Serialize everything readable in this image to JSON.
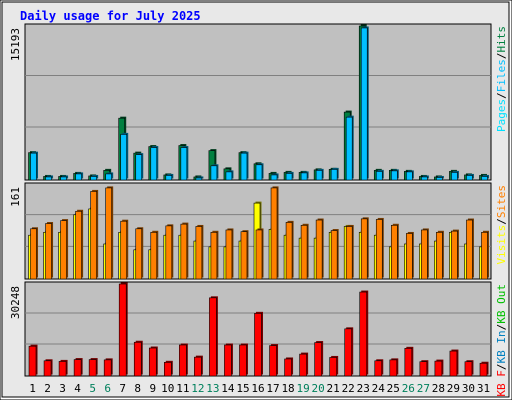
{
  "chart_data": {
    "type": "bar",
    "title": "Daily usage for July 2025",
    "categories": [
      "1",
      "2",
      "3",
      "4",
      "5",
      "6",
      "7",
      "8",
      "9",
      "10",
      "11",
      "12",
      "13",
      "14",
      "15",
      "16",
      "17",
      "18",
      "19",
      "20",
      "21",
      "22",
      "23",
      "24",
      "25",
      "26",
      "27",
      "28",
      "29",
      "30",
      "31"
    ],
    "weekend_days": [
      "5",
      "6",
      "12",
      "13",
      "19",
      "20",
      "26",
      "27"
    ],
    "colors": {
      "hits": "#008040",
      "files": "#00c0ff",
      "pages": "#00e0ff",
      "visits": "#ffff00",
      "sites": "#ff8000",
      "kb_in": "#0080c0",
      "kb_out": "#00c000",
      "kb_f": "#ff0000",
      "weekday_label": "#000000",
      "weekend_label": "#00805c",
      "title": "#0000ff",
      "panel_bg": "#c0c0c0"
    },
    "panels": [
      {
        "id": "pages-files-hits",
        "max_label": "15193",
        "ylim": [
          0,
          15193
        ],
        "legend": [
          "Pages",
          "/",
          "Files",
          "/",
          "Hits"
        ],
        "series": [
          {
            "name": "Hits",
            "values": [
              2700,
              350,
              350,
              650,
              400,
              950,
              6100,
              2650,
              3300,
              500,
              3400,
              300,
              2900,
              1100,
              2700,
              1600,
              650,
              750,
              750,
              1000,
              1050,
              6700,
              15193,
              950,
              950,
              850,
              350,
              300,
              850,
              500,
              450
            ]
          },
          {
            "name": "Files",
            "values": [
              2650,
              300,
              300,
              600,
              350,
              600,
              4500,
              2500,
              3200,
              450,
              3200,
              200,
              1400,
              800,
              2650,
              1500,
              500,
              650,
              700,
              950,
              1050,
              6200,
              15000,
              850,
              900,
              800,
              300,
              250,
              750,
              450,
              350
            ]
          }
        ]
      },
      {
        "id": "visits-sites",
        "max_label": "161",
        "ylim": [
          0,
          161
        ],
        "legend": [
          "Visits",
          "/",
          "Sites"
        ],
        "series": [
          {
            "name": "Visits",
            "values": [
              75,
              80,
              80,
              110,
              120,
              60,
              80,
              50,
              50,
              75,
              75,
              65,
              55,
              55,
              65,
              130,
              85,
              75,
              70,
              70,
              80,
              90,
              80,
              75,
              55,
              60,
              60,
              65,
              80,
              60,
              55
            ]
          },
          {
            "name": "Sites",
            "values": [
              86,
              95,
              100,
              116,
              150,
              156,
              99,
              86,
              80,
              91,
              94,
              90,
              80,
              84,
              81,
              84,
              156,
              97,
              92,
              101,
              83,
              90,
              103,
              102,
              92,
              78,
              84,
              80,
              82,
              101,
              80
            ]
          }
        ]
      },
      {
        "id": "kb",
        "max_label": "30248",
        "ylim": [
          0,
          30248
        ],
        "legend": [
          "KB",
          "F",
          "/",
          "KB",
          "In",
          "/",
          "KB",
          "Out"
        ],
        "series": [
          {
            "name": "KB F",
            "values": [
              9800,
              5000,
              4800,
              5400,
              5400,
              5300,
              30248,
              11100,
              9200,
              4500,
              10200,
              6200,
              25700,
              10200,
              10200,
              20600,
              10000,
              5600,
              7200,
              11000,
              6100,
              15500,
              27600,
              5000,
              5300,
              9100,
              4700,
              4900,
              8200,
              4700,
              4200
            ]
          }
        ]
      }
    ]
  }
}
